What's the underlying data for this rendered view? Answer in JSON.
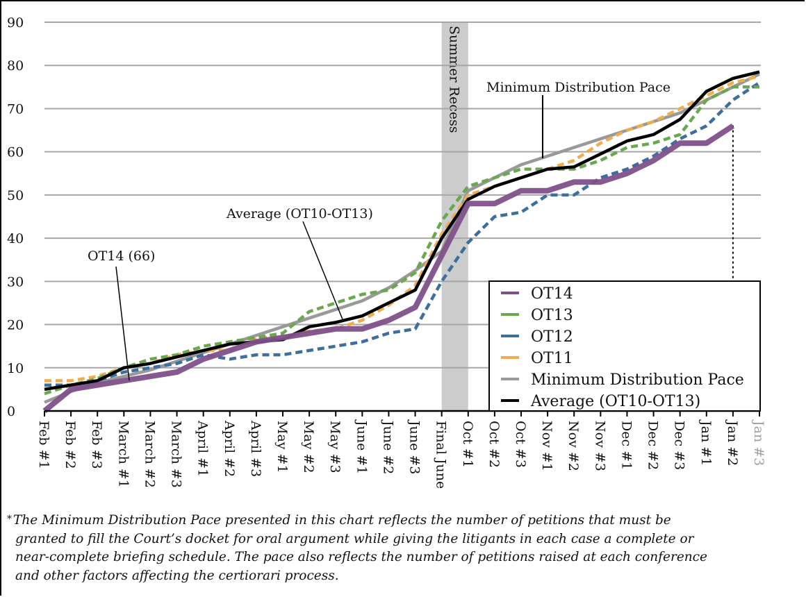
{
  "chart_data": {
    "type": "line",
    "title": "",
    "xlabel": "",
    "ylabel": "",
    "ylim": [
      0,
      90
    ],
    "yticks": [
      0,
      10,
      20,
      30,
      40,
      50,
      60,
      70,
      80,
      90
    ],
    "grid": true,
    "legend_position": "bottom-right",
    "categories": [
      "Feb #1",
      "Feb #2",
      "Feb #3",
      "March #1",
      "March #2",
      "March #3",
      "April #1",
      "April #2",
      "April #3",
      "May #1",
      "May #2",
      "May #3",
      "June #1",
      "June #2",
      "June #3",
      "Final June",
      "Oct #1",
      "Oct #2",
      "Oct #3",
      "Nov #1",
      "Nov #2",
      "Nov #3",
      "Dec #1",
      "Dec #2",
      "Dec #3",
      "Jan #1",
      "Jan #2",
      "Jan #3"
    ],
    "greyed_categories": [
      "Jan #3"
    ],
    "series": [
      {
        "name": "Minimum Distribution Pace",
        "color": "#999999",
        "style": "solid",
        "weight": "medium",
        "values": [
          2,
          4.5,
          6.5,
          8,
          9.5,
          11.5,
          13.5,
          15.5,
          17.5,
          19.5,
          21.5,
          23.5,
          25.5,
          28.5,
          32.5,
          37,
          51,
          54,
          57,
          59,
          61,
          63,
          65,
          67,
          69,
          72,
          75,
          78
        ]
      },
      {
        "name": "OT11",
        "color": "#F0AD4E",
        "style": "dashed",
        "weight": "medium",
        "values": [
          7,
          7,
          8,
          10,
          11,
          13,
          14,
          14,
          17,
          17,
          18.5,
          19,
          21,
          24.5,
          29,
          41,
          50,
          52,
          54,
          56,
          58,
          62,
          65,
          67,
          70,
          73,
          76,
          77.5
        ]
      },
      {
        "name": "OT12",
        "color": "#3C6E9E",
        "style": "dashed",
        "weight": "medium",
        "values": [
          6,
          6,
          7,
          9,
          10,
          11,
          13,
          12,
          13,
          13,
          14,
          15,
          16,
          18,
          19,
          30,
          39,
          45,
          46,
          50,
          50,
          54,
          56,
          59,
          63,
          66,
          72,
          76
        ]
      },
      {
        "name": "OT13",
        "color": "#6AA84F",
        "style": "dashed",
        "weight": "medium",
        "values": [
          4,
          6,
          7.5,
          10,
          12,
          13,
          15,
          16,
          17,
          18,
          23,
          25,
          27,
          28,
          32,
          44,
          52,
          54,
          56,
          56,
          56,
          58,
          61,
          62,
          64,
          72,
          75,
          75
        ]
      },
      {
        "name": "Average (OT10-OT13)",
        "color": "#000000",
        "style": "solid",
        "weight": "medium",
        "values": [
          5,
          6,
          7,
          10,
          11,
          12.5,
          14,
          15.5,
          16,
          16.5,
          19.5,
          20.5,
          22,
          25,
          28,
          40,
          49,
          52,
          54,
          56,
          56.5,
          59.5,
          62.5,
          64,
          67.5,
          74,
          77,
          78.5
        ]
      },
      {
        "name": "OT14",
        "color": "#80508A",
        "style": "solid",
        "weight": "heavy",
        "values": [
          0,
          5,
          6,
          7,
          8,
          9,
          12,
          14,
          16,
          17,
          18,
          19,
          19,
          21,
          24,
          36,
          48,
          48,
          51,
          51,
          53,
          53,
          55,
          58,
          62,
          62,
          66,
          null
        ]
      }
    ],
    "legend_order": [
      "OT14",
      "OT13",
      "OT12",
      "OT11",
      "Minimum Distribution Pace",
      "Average (OT10-OT13)"
    ],
    "shaded_region": {
      "label": "Summer Recess",
      "from_category": "Final June",
      "to_category": "Oct #1",
      "color": "#CCCCCC"
    },
    "annotations": [
      {
        "text": "OT14 (66)",
        "points_to_series": "OT14",
        "at_category": "March #1"
      },
      {
        "text": "Average (OT10-OT13)",
        "points_to_series": "Average (OT10-OT13)",
        "at_category": "May #3"
      },
      {
        "text": "Minimum Distribution Pace",
        "points_to_series": "Minimum Distribution Pace",
        "at_category": "Nov #1"
      }
    ],
    "reference_line": {
      "style": "dotted",
      "at_category": "Jan #2",
      "from_value": 0,
      "to_value": 66
    }
  },
  "footnote": {
    "marker": "*",
    "lines": [
      "The Minimum Distribution Pace presented in this chart reflects the number of petitions that must be",
      "granted to fill the Court’s docket for oral argument while giving the litigants in each case a complete or",
      "near-complete briefing schedule. The pace also reflects the number of petitions raised at each conference",
      "and other factors affecting the certiorari process."
    ]
  }
}
